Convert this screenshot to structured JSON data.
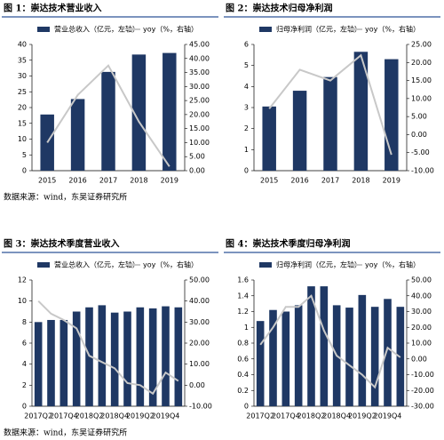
{
  "chart_data": [
    {
      "type": "bar-line",
      "title": "图 1：崇达技术营业收入",
      "source": "数据来源：wind，东吴证券研究所",
      "categories": [
        "2015",
        "2016",
        "2017",
        "2018",
        "2019"
      ],
      "series": [
        {
          "name": "营业总收入（亿元，左轴）",
          "color": "#1f3864",
          "type": "bar",
          "values": [
            17.8,
            22.7,
            31.3,
            36.8,
            37.3
          ]
        },
        {
          "name": "yoy（%，右轴）",
          "color": "#c8c8c8",
          "type": "line",
          "axis": "y2",
          "values": [
            10,
            27,
            37.5,
            17.5,
            1.5
          ]
        }
      ],
      "ylim": [
        0,
        40
      ],
      "yticks": [
        0,
        5,
        10,
        15,
        20,
        25,
        30,
        35,
        40
      ],
      "y2lim": [
        0,
        45
      ],
      "y2ticks": [
        {
          "value": 0,
          "label": "0.00"
        },
        {
          "value": 5,
          "label": "5.00"
        },
        {
          "value": 10,
          "label": "10.00"
        },
        {
          "value": 15,
          "label": "15.00"
        },
        {
          "value": 20,
          "label": "20.00"
        },
        {
          "value": 25,
          "label": "25.00"
        },
        {
          "value": 30,
          "label": "30.00"
        },
        {
          "value": 35,
          "label": "35.00"
        },
        {
          "value": 40,
          "label": "40.00"
        },
        {
          "value": 45,
          "label": "45.00"
        }
      ]
    },
    {
      "type": "bar-line",
      "title": "图 2：崇达技术归母净利润",
      "categories": [
        "2015",
        "2016",
        "2017",
        "2018",
        "2019"
      ],
      "series": [
        {
          "name": "归母净利润（亿元，左轴）",
          "color": "#1f3864",
          "type": "bar",
          "values": [
            3.05,
            3.8,
            4.45,
            5.65,
            5.3
          ]
        },
        {
          "name": "yoy（%，右轴）",
          "color": "#c8c8c8",
          "type": "line",
          "axis": "y2",
          "values": [
            7.2,
            18,
            15,
            22,
            -5.6
          ]
        }
      ],
      "ylim": [
        0,
        6
      ],
      "yticks": [
        0,
        1,
        2,
        3,
        4,
        5,
        6
      ],
      "y2lim": [
        -10,
        25
      ],
      "y2ticks": [
        {
          "value": -10,
          "label": "-10.00"
        },
        {
          "value": -5,
          "label": "-5.00"
        },
        {
          "value": 0,
          "label": "0.00"
        },
        {
          "value": 5,
          "label": "5.00"
        },
        {
          "value": 10,
          "label": "10.00"
        },
        {
          "value": 15,
          "label": "15.00"
        },
        {
          "value": 20,
          "label": "20.00"
        },
        {
          "value": 25,
          "label": "25.00"
        }
      ]
    },
    {
      "type": "bar-line",
      "title": "图 3：崇达技术季度营业收入",
      "source": "数据来源：wind，东吴证券研究所",
      "categories": [
        "2017Q2",
        null,
        "2017Q4",
        null,
        "2018Q2",
        null,
        "2018Q4",
        null,
        "2019Q2",
        null,
        "2019Q4",
        null
      ],
      "series": [
        {
          "name": "营业总收入（亿元，左轴）",
          "color": "#1f3864",
          "type": "bar",
          "values": [
            8.0,
            8.2,
            8.2,
            9.0,
            9.4,
            9.6,
            8.9,
            9.0,
            9.4,
            9.3,
            9.5,
            9.4
          ]
        },
        {
          "name": "yoy（%，右轴）",
          "color": "#c8c8c8",
          "type": "line",
          "axis": "y2",
          "values": [
            40,
            34,
            31,
            27,
            14,
            11,
            8,
            1,
            0,
            -4,
            6,
            2
          ]
        }
      ],
      "ylim": [
        0,
        12
      ],
      "yticks": [
        0,
        2,
        4,
        6,
        8,
        10,
        12
      ],
      "y2lim": [
        -10,
        50
      ],
      "y2ticks": [
        {
          "value": -10,
          "label": "-10.00"
        },
        {
          "value": 0,
          "label": "0.00"
        },
        {
          "value": 10,
          "label": "10.00"
        },
        {
          "value": 20,
          "label": "20.00"
        },
        {
          "value": 30,
          "label": "30.00"
        },
        {
          "value": 40,
          "label": "40.00"
        },
        {
          "value": 50,
          "label": "50.00"
        }
      ]
    },
    {
      "type": "bar-line",
      "title": "图 4：崇达技术季度归母净利润",
      "categories": [
        "2017Q2",
        null,
        "2017Q4",
        null,
        "2018Q2",
        null,
        "2018Q4",
        null,
        "2019Q2",
        null,
        "2019Q4",
        null
      ],
      "series": [
        {
          "name": "归母净利润（亿元，左轴）",
          "color": "#1f3864",
          "type": "bar",
          "values": [
            1.08,
            1.22,
            1.2,
            1.28,
            1.52,
            1.52,
            1.28,
            1.25,
            1.41,
            1.26,
            1.36,
            1.26
          ]
        },
        {
          "name": "yoy（%，右轴）",
          "color": "#c8c8c8",
          "type": "line",
          "axis": "y2",
          "values": [
            9,
            20,
            33,
            33,
            40,
            18,
            2,
            -4,
            -10,
            -18,
            7,
            1
          ]
        }
      ],
      "ylim": [
        0,
        1.6
      ],
      "yticks": [
        0,
        0.2,
        0.4,
        0.6,
        0.8,
        1,
        1.2,
        1.4,
        1.6
      ],
      "y2lim": [
        -30,
        50
      ],
      "y2ticks": [
        {
          "value": -30,
          "label": "-30.00"
        },
        {
          "value": -20,
          "label": "-20.00"
        },
        {
          "value": -10,
          "label": "-10.00"
        },
        {
          "value": 0,
          "label": "0.00"
        },
        {
          "value": 10,
          "label": "10.00"
        },
        {
          "value": 20,
          "label": "20.00"
        },
        {
          "value": 30,
          "label": "30.00"
        },
        {
          "value": 40,
          "label": "40.00"
        },
        {
          "value": 50,
          "label": "50.00"
        }
      ]
    }
  ]
}
